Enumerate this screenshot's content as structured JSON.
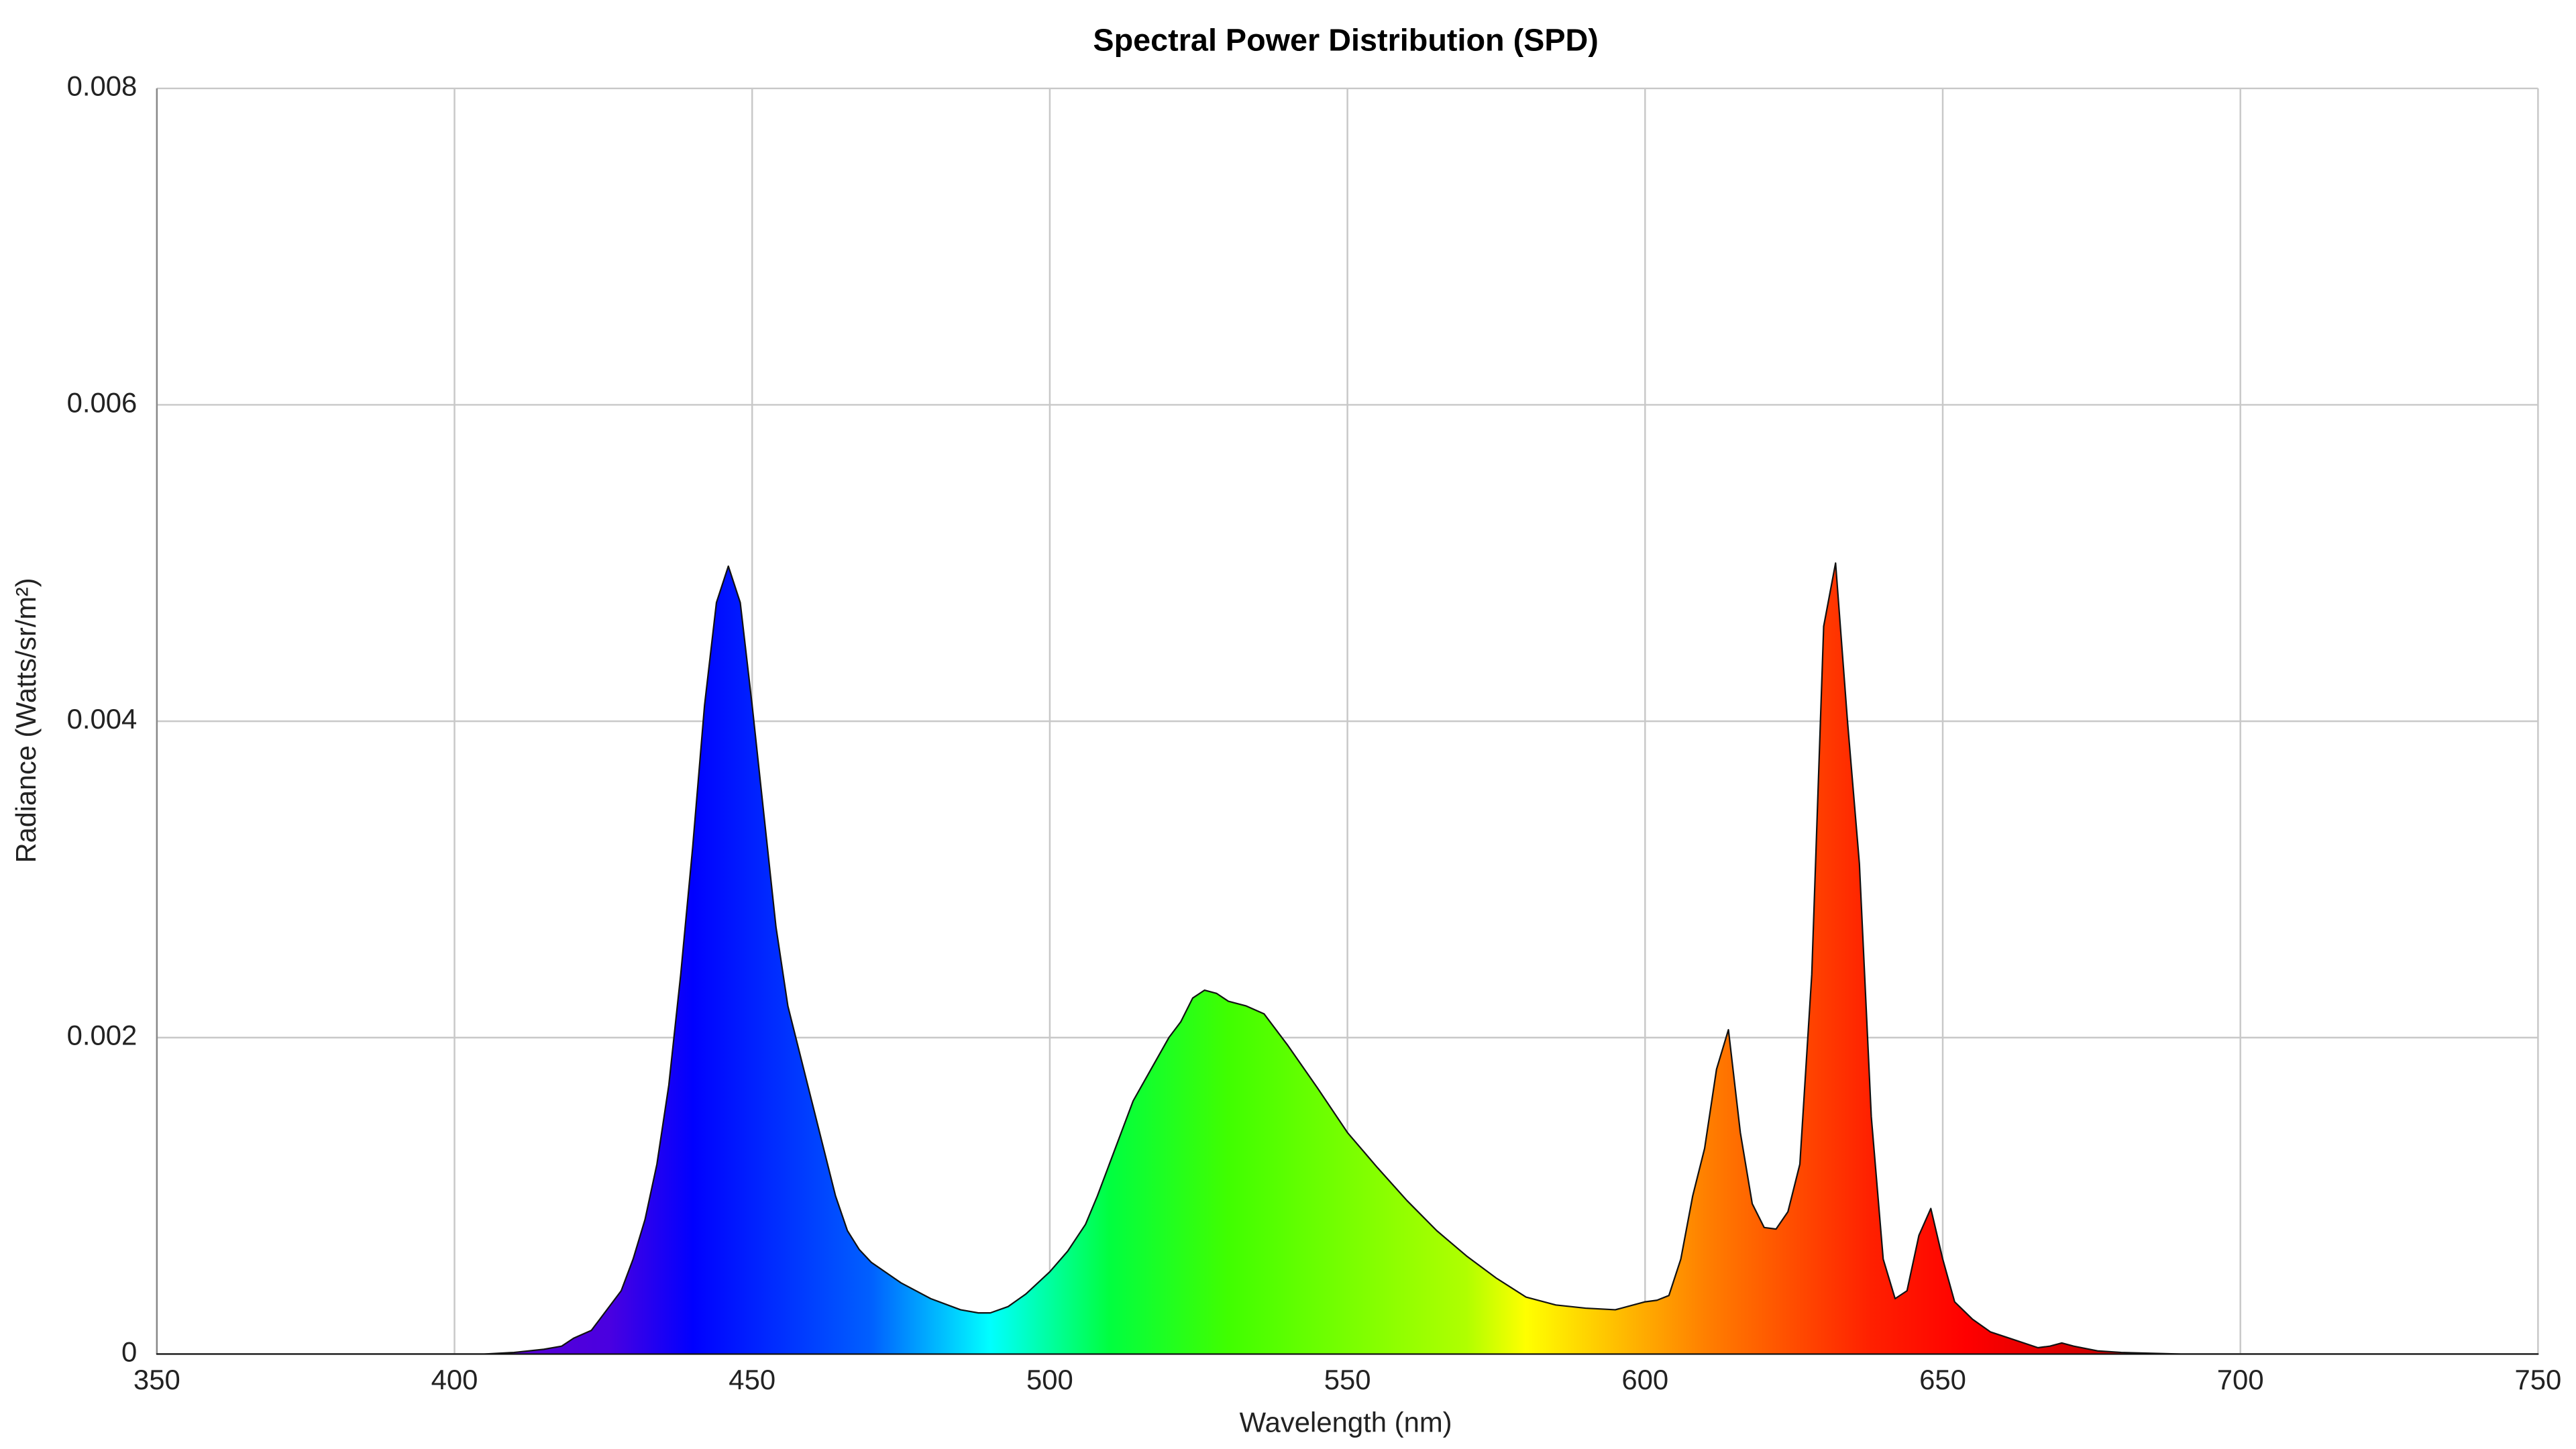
{
  "chart_data": {
    "type": "area",
    "title": "Spectral Power Distribution (SPD)",
    "x_label": "Wavelength (nm)",
    "y_label": "Radiance (Watts/sr/m²)",
    "xlim": [
      350,
      750
    ],
    "xticks": [
      350,
      400,
      450,
      500,
      550,
      600,
      650,
      700,
      750
    ],
    "ylim": [
      0,
      0.008
    ],
    "yticks": [
      0,
      0.002,
      0.004,
      0.006,
      0.008
    ],
    "grid": true,
    "x": [
      350,
      400,
      405,
      410,
      415,
      418,
      420,
      423,
      425,
      428,
      430,
      432,
      434,
      436,
      438,
      440,
      442,
      444,
      446,
      448,
      450,
      452,
      454,
      456,
      458,
      460,
      462,
      464,
      466,
      468,
      470,
      475,
      480,
      485,
      488,
      490,
      493,
      496,
      500,
      503,
      506,
      508,
      510,
      512,
      514,
      517,
      520,
      522,
      524,
      526,
      528,
      530,
      533,
      536,
      540,
      545,
      550,
      555,
      560,
      565,
      570,
      575,
      580,
      585,
      590,
      595,
      598,
      600,
      602,
      604,
      606,
      608,
      610,
      612,
      614,
      616,
      618,
      620,
      622,
      624,
      626,
      628,
      630,
      632,
      634,
      636,
      638,
      640,
      642,
      644,
      646,
      648,
      650,
      652,
      655,
      658,
      662,
      666,
      668,
      670,
      672,
      676,
      680,
      690,
      750
    ],
    "values": [
      0,
      0,
      0,
      1e-05,
      3e-05,
      5e-05,
      0.0001,
      0.00015,
      0.00025,
      0.0004,
      0.0006,
      0.00085,
      0.0012,
      0.0017,
      0.0024,
      0.0032,
      0.0041,
      0.00475,
      0.00498,
      0.00475,
      0.0041,
      0.0034,
      0.0027,
      0.0022,
      0.0019,
      0.0016,
      0.0013,
      0.001,
      0.00078,
      0.00066,
      0.00058,
      0.00045,
      0.00035,
      0.00028,
      0.00026,
      0.00026,
      0.0003,
      0.00038,
      0.00052,
      0.00065,
      0.00082,
      0.001,
      0.0012,
      0.0014,
      0.0016,
      0.0018,
      0.002,
      0.0021,
      0.00225,
      0.0023,
      0.00228,
      0.00223,
      0.0022,
      0.00215,
      0.00195,
      0.00168,
      0.0014,
      0.00118,
      0.00097,
      0.00078,
      0.00062,
      0.00048,
      0.00036,
      0.00031,
      0.00029,
      0.00028,
      0.00031,
      0.00033,
      0.00034,
      0.00037,
      0.0006,
      0.001,
      0.0013,
      0.0018,
      0.00205,
      0.0014,
      0.00095,
      0.0008,
      0.00079,
      0.0009,
      0.0012,
      0.0024,
      0.0046,
      0.005,
      0.004,
      0.0031,
      0.0015,
      0.0006,
      0.00035,
      0.0004,
      0.00075,
      0.00092,
      0.0006,
      0.00033,
      0.00022,
      0.00014,
      9e-05,
      4e-05,
      5e-05,
      7e-05,
      5e-05,
      2e-05,
      1e-05,
      0,
      0
    ]
  }
}
